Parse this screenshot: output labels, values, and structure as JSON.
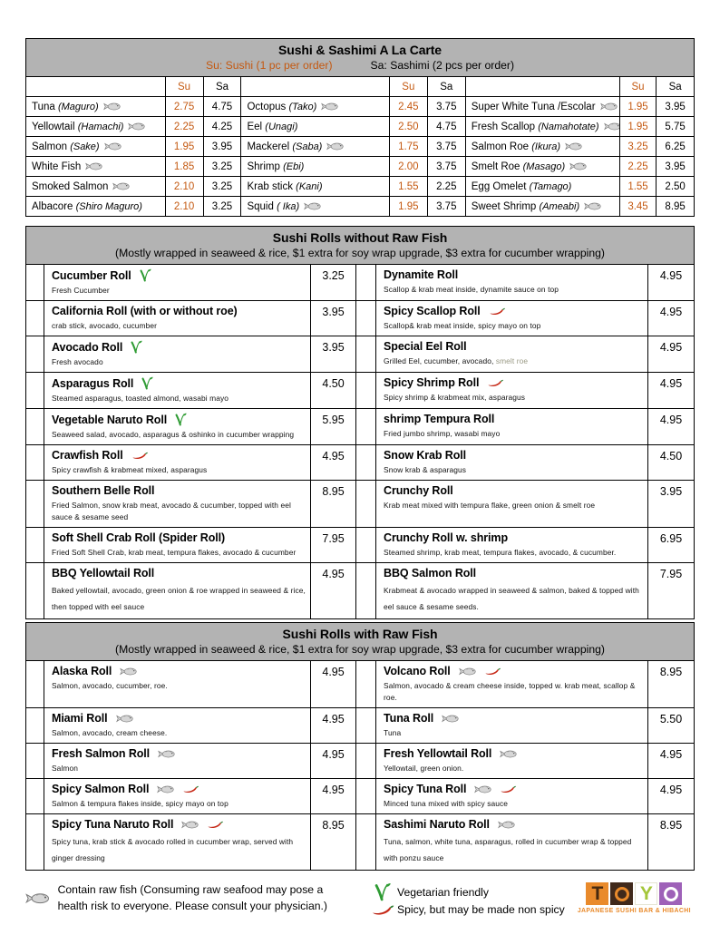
{
  "colors": {
    "accent_orange": "#C45911",
    "band_gray": "#B3B3B3",
    "muted_text": "#9A9A85",
    "logo_orange": "#E98A2B",
    "logo_brown": "#40291B",
    "logo_green": "#A4C639",
    "logo_purple": "#9E61B8",
    "chili_red": "#D32F1B",
    "veg_green": "#2E9B33"
  },
  "alacarte": {
    "title": "Sushi & Sashimi A La Carte",
    "subtitle_su": "Su: Sushi (1 pc per order)",
    "subtitle_sa": "Sa: Sashimi (2 pcs per order)",
    "col_su": "Su",
    "col_sa": "Sa",
    "rows": [
      [
        {
          "name": "Tuna",
          "jp": "(Maguro)",
          "fish": true,
          "su": "2.75",
          "sa": "4.75"
        },
        {
          "name": "Octopus",
          "jp": "(Tako)",
          "fish": true,
          "su": "2.45",
          "sa": "3.75"
        },
        {
          "name": "Super White Tuna /Escolar",
          "jp": "",
          "fish": true,
          "su": "1.95",
          "sa": "3.95"
        }
      ],
      [
        {
          "name": "Yellowtail",
          "jp": "(Hamachi)",
          "fish": true,
          "su": "2.25",
          "sa": "4.25"
        },
        {
          "name": "Eel",
          "jp": "(Unagi)",
          "fish": false,
          "su": "2.50",
          "sa": "4.75"
        },
        {
          "name": "Fresh Scallop",
          "jp": "(Namahotate)",
          "fish": true,
          "su": "1.95",
          "sa": "5.75"
        }
      ],
      [
        {
          "name": "Salmon",
          "jp": "(Sake)",
          "fish": true,
          "su": "1.95",
          "sa": "3.95"
        },
        {
          "name": "Mackerel",
          "jp": "(Saba)",
          "fish": true,
          "su": "1.75",
          "sa": "3.75"
        },
        {
          "name": "Salmon Roe",
          "jp": "(Ikura)",
          "fish": true,
          "su": "3.25",
          "sa": "6.25"
        }
      ],
      [
        {
          "name": "White Fish",
          "jp": "",
          "fish": true,
          "su": "1.85",
          "sa": "3.25"
        },
        {
          "name": "Shrimp",
          "jp": "(Ebi)",
          "fish": false,
          "su": "2.00",
          "sa": "3.75"
        },
        {
          "name": "Smelt Roe",
          "jp": "(Masago)",
          "fish": true,
          "su": "2.25",
          "sa": "3.95"
        }
      ],
      [
        {
          "name": "Smoked Salmon",
          "jp": "",
          "fish": true,
          "su": "2.10",
          "sa": "3.25"
        },
        {
          "name": "Krab stick",
          "jp": "(Kani)",
          "fish": false,
          "su": "1.55",
          "sa": "2.25"
        },
        {
          "name": "Egg Omelet",
          "jp": "(Tamago)",
          "fish": false,
          "su": "1.55",
          "sa": "2.50"
        }
      ],
      [
        {
          "name": "Albacore",
          "jp": "(Shiro Maguro)",
          "fish": false,
          "su": "2.10",
          "sa": "3.25"
        },
        {
          "name": "Squid",
          "jp": "( Ika)",
          "fish": true,
          "su": "1.95",
          "sa": "3.75"
        },
        {
          "name": "Sweet Shrimp",
          "jp": "(Ameabi)",
          "fish": true,
          "su": "3.45",
          "sa": "8.95"
        }
      ]
    ]
  },
  "rolls_no_raw": {
    "title": "Sushi Rolls without Raw Fish",
    "subtitle": "(Mostly wrapped in seaweed & rice, $1 extra for soy wrap upgrade, $3 extra for cucumber wrapping)",
    "rows": [
      [
        {
          "name": "Cucumber Roll",
          "icons": [
            "veg"
          ],
          "desc": "Fresh Cucumber",
          "desc_muted": "",
          "price": "3.25"
        },
        {
          "name": "Dynamite Roll",
          "icons": [],
          "desc": "Scallop & krab meat inside, dynamite sauce on top",
          "desc_muted": "",
          "price": "4.95"
        }
      ],
      [
        {
          "name": "California Roll (with or without roe)",
          "icons": [],
          "desc": "crab stick, avocado, cucumber",
          "desc_muted": "",
          "price": "3.95"
        },
        {
          "name": "Spicy Scallop Roll",
          "icons": [
            "chili"
          ],
          "desc": "Scallop& krab meat inside, spicy mayo on top",
          "desc_muted": "",
          "price": "4.95"
        }
      ],
      [
        {
          "name": "Avocado Roll",
          "icons": [
            "veg"
          ],
          "desc": "Fresh avocado",
          "desc_muted": "",
          "price": "3.95"
        },
        {
          "name": "Special Eel Roll",
          "icons": [],
          "desc": "Grilled Eel, cucumber, avocado,",
          "desc_muted": "smelt roe",
          "price": "4.95"
        }
      ],
      [
        {
          "name": "Asparagus Roll",
          "icons": [
            "veg"
          ],
          "desc": "Steamed asparagus, toasted almond, wasabi mayo",
          "desc_muted": "",
          "price": "4.50"
        },
        {
          "name": "Spicy Shrimp Roll",
          "icons": [
            "chili"
          ],
          "desc": "Spicy shrimp & krabmeat mix, asparagus",
          "desc_muted": "",
          "price": "4.95"
        }
      ],
      [
        {
          "name": "Vegetable Naruto Roll",
          "icons": [
            "veg"
          ],
          "desc": "Seaweed salad, avocado, asparagus & oshinko in cucumber wrapping",
          "desc_muted": "",
          "price": "5.95"
        },
        {
          "name": "shrimp Tempura Roll",
          "icons": [],
          "desc": "Fried jumbo shrimp, wasabi mayo",
          "desc_muted": "",
          "price": "4.95"
        }
      ],
      [
        {
          "name": "Crawfish Roll",
          "icons": [
            "chili"
          ],
          "desc": "Spicy crawfish & krabmeat mixed, asparagus",
          "desc_muted": "",
          "price": "4.95"
        },
        {
          "name": "Snow Krab Roll",
          "icons": [],
          "desc": "Snow krab & asparagus",
          "desc_muted": "",
          "price": "4.50"
        }
      ],
      [
        {
          "name": "Southern Belle Roll",
          "icons": [],
          "desc": "Fried Salmon, snow krab meat, avocado & cucumber, topped with eel sauce & sesame seed",
          "desc_muted": "",
          "price": "8.95"
        },
        {
          "name": "Crunchy Roll",
          "icons": [],
          "desc": "Krab meat mixed with tempura flake, green onion & smelt roe",
          "desc_muted": "",
          "price": "3.95"
        }
      ],
      [
        {
          "name": "Soft Shell Crab Roll (Spider Roll)",
          "icons": [],
          "desc": "Fried Soft Shell Crab, krab meat, tempura flakes, avocado & cucumber",
          "desc_muted": "",
          "price": "7.95"
        },
        {
          "name": "Crunchy Roll w. shrimp",
          "icons": [],
          "desc": "Steamed shrimp, krab meat, tempura flakes, avocado, & cucumber.",
          "desc_muted": "",
          "price": "6.95"
        }
      ],
      [
        {
          "name": "BBQ Yellowtail Roll",
          "icons": [],
          "desc": "Baked yellowtail, avocado, green onion & roe wrapped in seaweed & rice, then topped with eel sauce",
          "desc_muted": "",
          "price": "4.95"
        },
        {
          "name": "BBQ Salmon Roll",
          "icons": [],
          "desc": "Krabmeat & avocado wrapped in seaweed & salmon, baked & topped with eel sauce & sesame seeds.",
          "desc_muted": "",
          "price": "7.95"
        }
      ]
    ]
  },
  "rolls_raw": {
    "title": "Sushi Rolls with Raw Fish",
    "subtitle": "(Mostly wrapped in seaweed & rice, $1 extra for soy wrap upgrade, $3 extra for cucumber wrapping)",
    "rows": [
      [
        {
          "name": "Alaska Roll",
          "icons": [
            "fish"
          ],
          "desc": "Salmon, avocado, cucumber, roe.",
          "desc_muted": "",
          "price": "4.95"
        },
        {
          "name": "Volcano Roll",
          "icons": [
            "fish",
            "chili"
          ],
          "desc": "Salmon, avocado & cream cheese inside, topped w. krab meat, scallop & roe.",
          "desc_muted": "",
          "price": "8.95"
        }
      ],
      [
        {
          "name": "Miami Roll",
          "icons": [
            "fish"
          ],
          "desc": "Salmon, avocado, cream cheese.",
          "desc_muted": "",
          "price": "4.95"
        },
        {
          "name": "Tuna Roll",
          "icons": [
            "fish"
          ],
          "desc": "Tuna",
          "desc_muted": "",
          "price": "5.50"
        }
      ],
      [
        {
          "name": "Fresh Salmon Roll",
          "icons": [
            "fish"
          ],
          "desc": "Salmon",
          "desc_muted": "",
          "price": "4.95"
        },
        {
          "name": "Fresh Yellowtail Roll",
          "icons": [
            "fish"
          ],
          "desc": "Yellowtail, green onion.",
          "desc_muted": "",
          "price": "4.95"
        }
      ],
      [
        {
          "name": "Spicy Salmon Roll",
          "icons": [
            "fish",
            "chili"
          ],
          "desc": "Salmon & tempura flakes inside, spicy mayo on top",
          "desc_muted": "",
          "price": "4.95"
        },
        {
          "name": "Spicy Tuna Roll",
          "icons": [
            "fish",
            "chili"
          ],
          "desc": "Minced tuna mixed with spicy sauce",
          "desc_muted": "",
          "price": "4.95"
        }
      ],
      [
        {
          "name": "Spicy Tuna Naruto Roll",
          "icons": [
            "fish",
            "chili"
          ],
          "desc": "Spicy tuna, krab stick & avocado rolled in cucumber wrap, served with ginger dressing",
          "desc_muted": "",
          "price": "8.95"
        },
        {
          "name": "Sashimi Naruto Roll",
          "icons": [
            "fish"
          ],
          "desc": "Tuna, salmon, white tuna, asparagus, rolled in cucumber wrap & topped with ponzu sauce",
          "desc_muted": "",
          "price": "8.95"
        }
      ]
    ]
  },
  "legend": {
    "raw_fish": "Contain raw fish (Consuming raw seafood may pose a health risk to everyone.  Please consult your physician.)",
    "vegetarian": "Vegetarian friendly",
    "spicy": "Spicy, but may be made non spicy"
  },
  "logo": {
    "letters": [
      "T",
      "O",
      "Y",
      "O"
    ],
    "tagline": "JAPANESE SUSHI BAR & HIBACHI"
  }
}
